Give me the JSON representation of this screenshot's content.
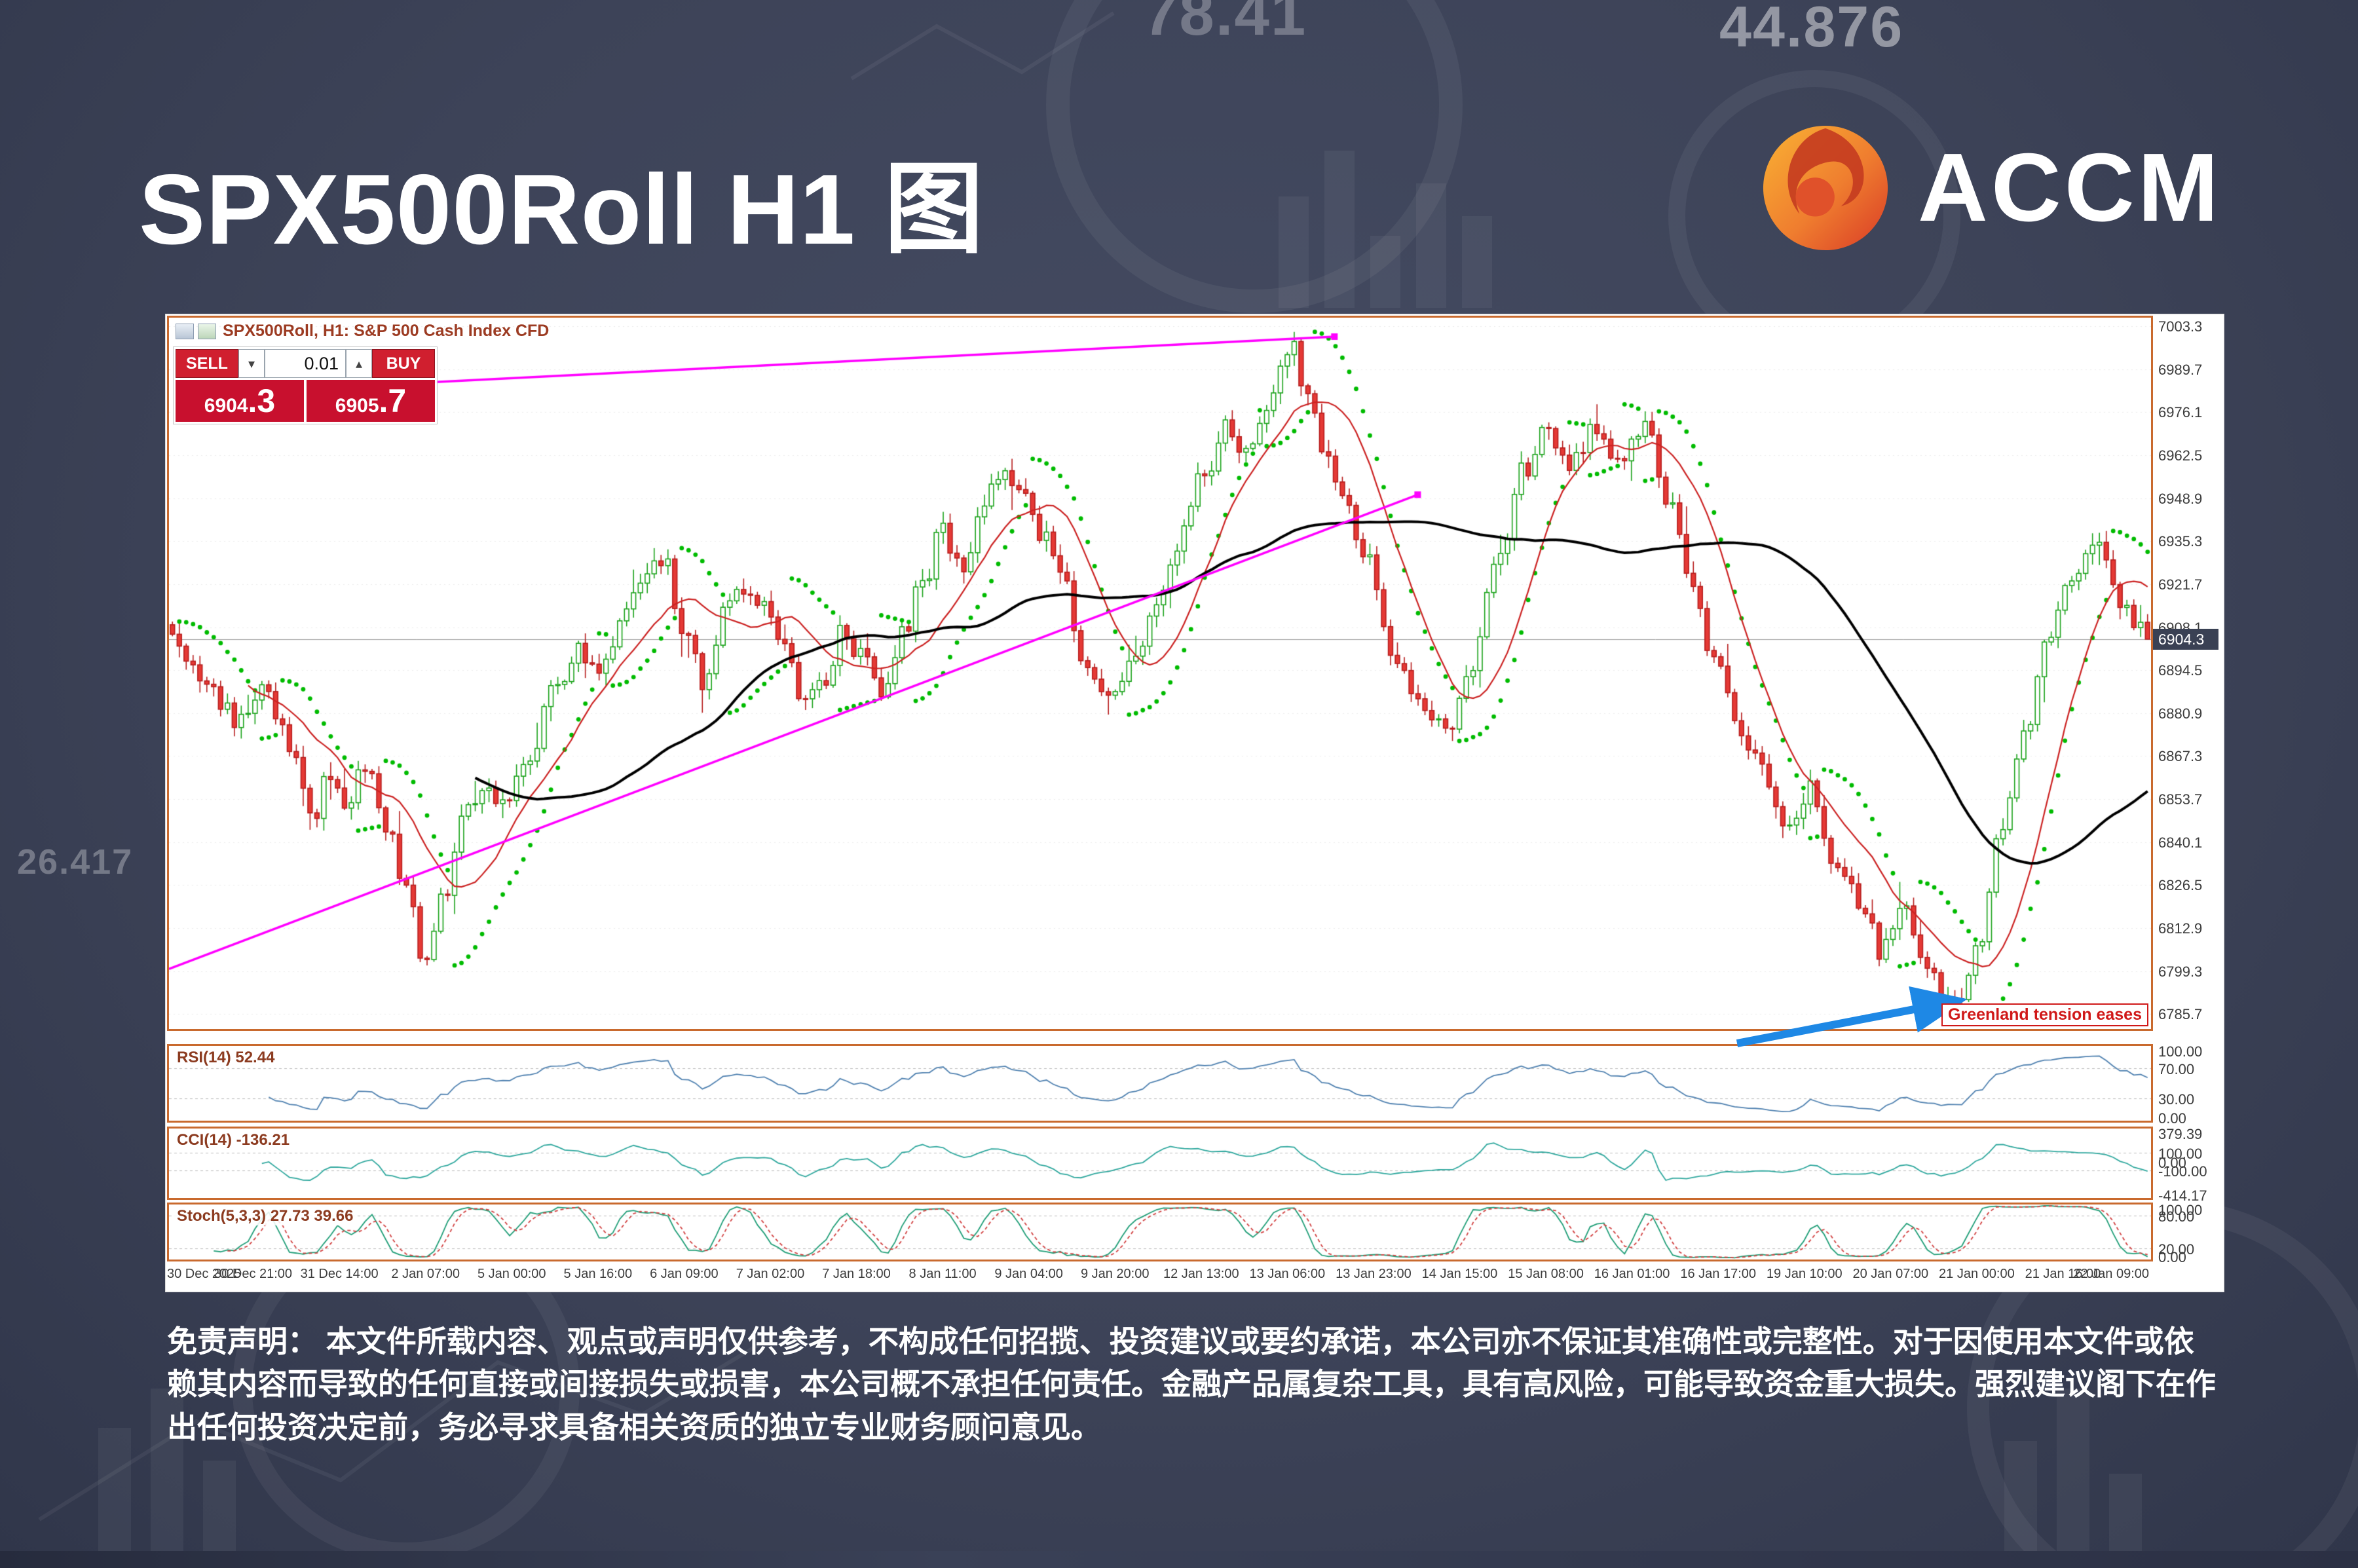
{
  "page": {
    "title": "SPX500Roll H1 图",
    "brand": "ACCM",
    "disclaimer": "免责声明： 本文件所载内容、观点或声明仅供参考，不构成任何招揽、投资建议或要约承诺，本公司亦不保证其准确性或完整性。对于因使用本文件或依赖其内容而导致的任何直接或间接损失或损害，本公司概不承担任何责任。金融产品属复杂工具，具有高风险，可能导致资金重大损失。强烈建议阁下在作出任何投资决定前，务必寻求具备相关资质的独立专业财务顾问意见。",
    "colors": {
      "brand_orange": "#ef7d2f",
      "button_red": "#d01f2f",
      "price_box_red": "#c8102e"
    }
  },
  "background": {
    "watermark_numbers": [
      "78.41",
      "44.876",
      "26.417"
    ]
  },
  "terminal": {
    "symbol_header": "SPX500Roll, H1: S&P 500 Cash Index CFD",
    "current_price": "6904.3",
    "trade_widget": {
      "sell_label": "SELL",
      "buy_label": "BUY",
      "volume": "0.01",
      "bid_main": "6904",
      "bid_pip": ".3",
      "ask_main": "6905",
      "ask_pip": ".7"
    },
    "annotation": {
      "text": "Greenland tension eases"
    }
  },
  "chart_data": {
    "type": "candlestick",
    "title": "SPX500Roll, H1: S&P 500 Cash Index CFD",
    "timeframe": "H1",
    "current_price": 6904.3,
    "price_range": [
      6781,
      7006
    ],
    "y_ticks": [
      7003.3,
      6989.7,
      6976.1,
      6962.5,
      6948.9,
      6935.3,
      6921.7,
      6908.1,
      6894.5,
      6880.9,
      6867.3,
      6853.7,
      6840.1,
      6826.5,
      6812.9,
      6799.3,
      6785.7
    ],
    "x_tick_labels": [
      "30 Dec 2025",
      "30 Dec 21:00",
      "31 Dec 14:00",
      "2 Jan 07:00",
      "5 Jan 00:00",
      "5 Jan 16:00",
      "6 Jan 09:00",
      "7 Jan 02:00",
      "7 Jan 18:00",
      "8 Jan 11:00",
      "9 Jan 04:00",
      "9 Jan 20:00",
      "12 Jan 13:00",
      "13 Jan 06:00",
      "13 Jan 23:00",
      "14 Jan 15:00",
      "15 Jan 08:00",
      "16 Jan 01:00",
      "16 Jan 17:00",
      "19 Jan 10:00",
      "20 Jan 07:00",
      "21 Jan 00:00",
      "21 Jan 16:00",
      "22 Jan 09:00"
    ],
    "candle_count": 288,
    "price_anchors": [
      [
        0.0,
        6903
      ],
      [
        0.012,
        6895
      ],
      [
        0.024,
        6886
      ],
      [
        0.036,
        6878
      ],
      [
        0.048,
        6890
      ],
      [
        0.06,
        6872
      ],
      [
        0.072,
        6848
      ],
      [
        0.08,
        6860
      ],
      [
        0.09,
        6852
      ],
      [
        0.1,
        6866
      ],
      [
        0.11,
        6846
      ],
      [
        0.12,
        6824
      ],
      [
        0.13,
        6800
      ],
      [
        0.138,
        6822
      ],
      [
        0.148,
        6846
      ],
      [
        0.158,
        6858
      ],
      [
        0.17,
        6850
      ],
      [
        0.182,
        6868
      ],
      [
        0.195,
        6888
      ],
      [
        0.207,
        6900
      ],
      [
        0.217,
        6893
      ],
      [
        0.228,
        6910
      ],
      [
        0.24,
        6924
      ],
      [
        0.25,
        6930
      ],
      [
        0.26,
        6906
      ],
      [
        0.27,
        6890
      ],
      [
        0.28,
        6912
      ],
      [
        0.29,
        6922
      ],
      [
        0.3,
        6915
      ],
      [
        0.31,
        6900
      ],
      [
        0.32,
        6884
      ],
      [
        0.33,
        6892
      ],
      [
        0.34,
        6906
      ],
      [
        0.35,
        6898
      ],
      [
        0.36,
        6888
      ],
      [
        0.37,
        6906
      ],
      [
        0.38,
        6922
      ],
      [
        0.39,
        6938
      ],
      [
        0.4,
        6928
      ],
      [
        0.41,
        6944
      ],
      [
        0.42,
        6956
      ],
      [
        0.43,
        6950
      ],
      [
        0.44,
        6938
      ],
      [
        0.45,
        6924
      ],
      [
        0.462,
        6898
      ],
      [
        0.474,
        6884
      ],
      [
        0.486,
        6898
      ],
      [
        0.498,
        6916
      ],
      [
        0.51,
        6936
      ],
      [
        0.522,
        6956
      ],
      [
        0.534,
        6972
      ],
      [
        0.545,
        6962
      ],
      [
        0.556,
        6980
      ],
      [
        0.565,
        6998
      ],
      [
        0.574,
        6984
      ],
      [
        0.584,
        6964
      ],
      [
        0.594,
        6946
      ],
      [
        0.604,
        6930
      ],
      [
        0.616,
        6900
      ],
      [
        0.63,
        6884
      ],
      [
        0.645,
        6874
      ],
      [
        0.656,
        6892
      ],
      [
        0.67,
        6930
      ],
      [
        0.684,
        6958
      ],
      [
        0.696,
        6970
      ],
      [
        0.708,
        6960
      ],
      [
        0.72,
        6972
      ],
      [
        0.732,
        6958
      ],
      [
        0.744,
        6972
      ],
      [
        0.756,
        6950
      ],
      [
        0.768,
        6920
      ],
      [
        0.78,
        6896
      ],
      [
        0.792,
        6876
      ],
      [
        0.804,
        6862
      ],
      [
        0.816,
        6846
      ],
      [
        0.828,
        6856
      ],
      [
        0.84,
        6834
      ],
      [
        0.852,
        6822
      ],
      [
        0.864,
        6806
      ],
      [
        0.876,
        6818
      ],
      [
        0.888,
        6798
      ],
      [
        0.9,
        6788
      ],
      [
        0.912,
        6806
      ],
      [
        0.924,
        6842
      ],
      [
        0.936,
        6876
      ],
      [
        0.948,
        6902
      ],
      [
        0.96,
        6924
      ],
      [
        0.972,
        6934
      ],
      [
        0.984,
        6916
      ],
      [
        1.0,
        6905
      ]
    ],
    "trendlines": [
      {
        "x1": 0.115,
        "p1": 6985,
        "x2": 0.588,
        "p2": 7000
      },
      {
        "x1": 0.0,
        "p1": 6800,
        "x2": 0.63,
        "p2": 6950
      }
    ],
    "overlays": {
      "fast_ma_period": 12,
      "slow_ma_period": 45,
      "psar_step": 0.02,
      "psar_max": 0.2
    },
    "colors": {
      "up_candle": "#1aa31a",
      "down_candle": "#e53935",
      "down_border": "#b71c1c",
      "fast_ma": "#cc2222",
      "slow_ma": "#000000",
      "psar": "#00bb00",
      "trendline": "#ff00ff",
      "current_price_line": "#9a9a9a",
      "grid": "#ececec",
      "frame": "#c96a2e",
      "arrow": "#1e88e5",
      "annotation": "#d01818"
    },
    "indicators": [
      {
        "id": "rsi",
        "label": "RSI(14) 52.44",
        "current": 52.44,
        "range": [
          0,
          100
        ],
        "levels": [
          70,
          30
        ],
        "axis_values": [
          100,
          70,
          30,
          0
        ],
        "axis_labels": [
          "100.00",
          "70.00",
          "30.00",
          "0.00"
        ],
        "color": "#4f81b0"
      },
      {
        "id": "cci",
        "label": "CCI(14) -136.21",
        "current": -136.21,
        "range": [
          -414.17,
          379.39
        ],
        "levels": [
          100,
          -100
        ],
        "axis_values": [
          379.39,
          100,
          0,
          -100,
          -414.17
        ],
        "axis_labels": [
          "379.39",
          "100.00",
          "0.00",
          "-100.00",
          "-414.17"
        ],
        "color": "#2fa89e"
      },
      {
        "id": "stoch",
        "label": "Stoch(5,3,3) 27.73 39.66",
        "current": [
          27.73,
          39.66
        ],
        "range": [
          0,
          100
        ],
        "levels": [
          80,
          20
        ],
        "axis_values": [
          100,
          80,
          20,
          0
        ],
        "axis_labels": [
          "100.00",
          "80.00",
          "20.00",
          "0.00"
        ],
        "colors": [
          "#1f9e77",
          "#d24040"
        ]
      }
    ]
  }
}
